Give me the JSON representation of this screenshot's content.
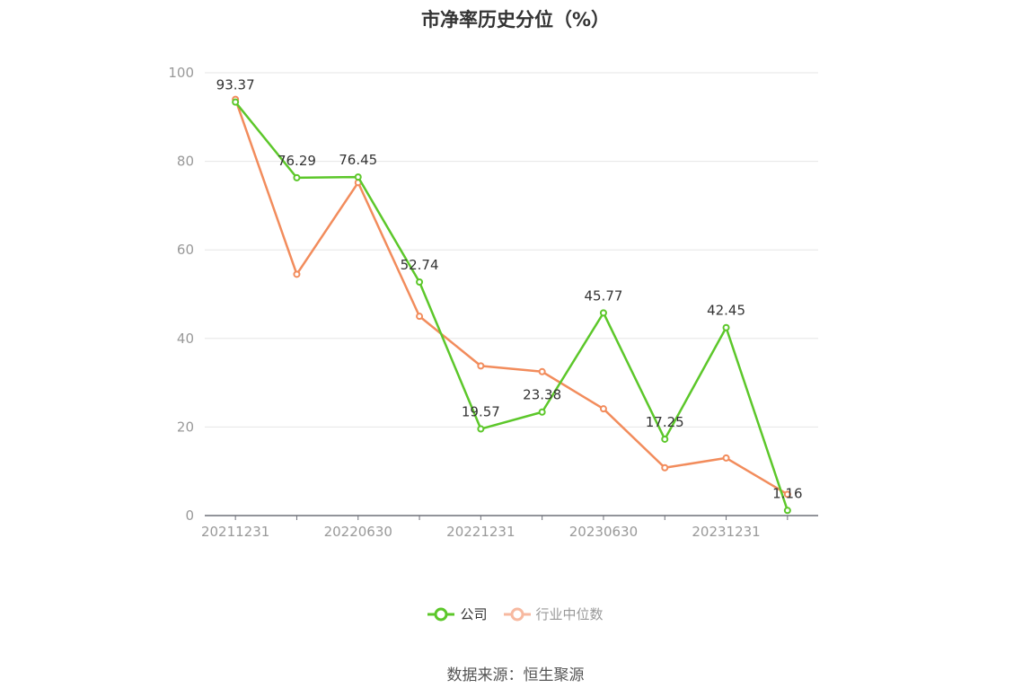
{
  "title": "市净率历史分位（%）",
  "source": "数据来源：恒生聚源",
  "chart_data": {
    "type": "line",
    "title": "市净率历史分位（%）",
    "x": [
      "20211231",
      "20220331",
      "20220630",
      "20220930",
      "20221231",
      "20230331",
      "20230630",
      "20230930",
      "20231231",
      "20240331"
    ],
    "x_tick_labels": [
      "20211231",
      "20220630",
      "20221231",
      "20230630",
      "20231231"
    ],
    "ylim": [
      0,
      100
    ],
    "y_ticks": [
      0,
      20,
      40,
      60,
      80,
      100
    ],
    "grid": true,
    "legend_position": "bottom",
    "series": [
      {
        "name": "公司",
        "color": "#5cc72a",
        "values": [
          93.37,
          76.29,
          76.45,
          52.74,
          19.57,
          23.38,
          45.77,
          17.25,
          42.45,
          1.16
        ],
        "labels": [
          "93.37",
          "76.29",
          "76.45",
          "52.74",
          "19.57",
          "23.38",
          "45.77",
          "17.25",
          "42.45",
          "1.16"
        ]
      },
      {
        "name": "行业中位数",
        "color": "#f28c5c",
        "legend_color": "#f7b9a0",
        "values": [
          94.0,
          54.5,
          75.2,
          45.0,
          33.8,
          32.5,
          24.1,
          10.8,
          13.0,
          4.8
        ]
      }
    ]
  }
}
